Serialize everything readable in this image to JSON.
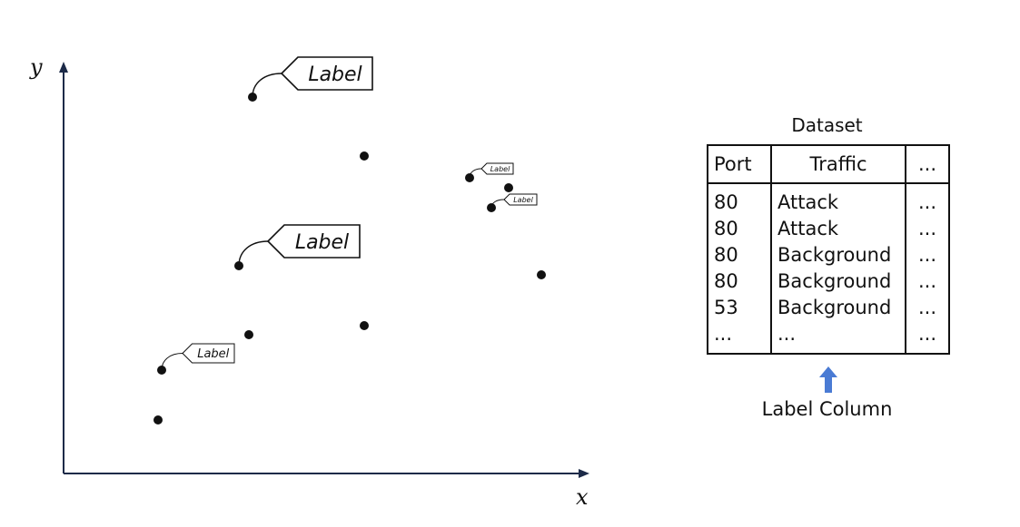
{
  "scatter": {
    "x_axis_label": "x",
    "y_axis_label": "y",
    "tag_text": "Label"
  },
  "dataset": {
    "title": "Dataset",
    "columns": [
      "Port",
      "Traffic",
      "..."
    ],
    "rows": [
      [
        "80",
        "Attack",
        "..."
      ],
      [
        "80",
        "Attack",
        "..."
      ],
      [
        "80",
        "Background",
        "..."
      ],
      [
        "80",
        "Background",
        "..."
      ],
      [
        "53",
        "Background",
        "..."
      ],
      [
        "...",
        "...",
        "..."
      ]
    ]
  },
  "annotation": {
    "caption": "Label Column",
    "arrow_color": "#4a7bd4"
  }
}
